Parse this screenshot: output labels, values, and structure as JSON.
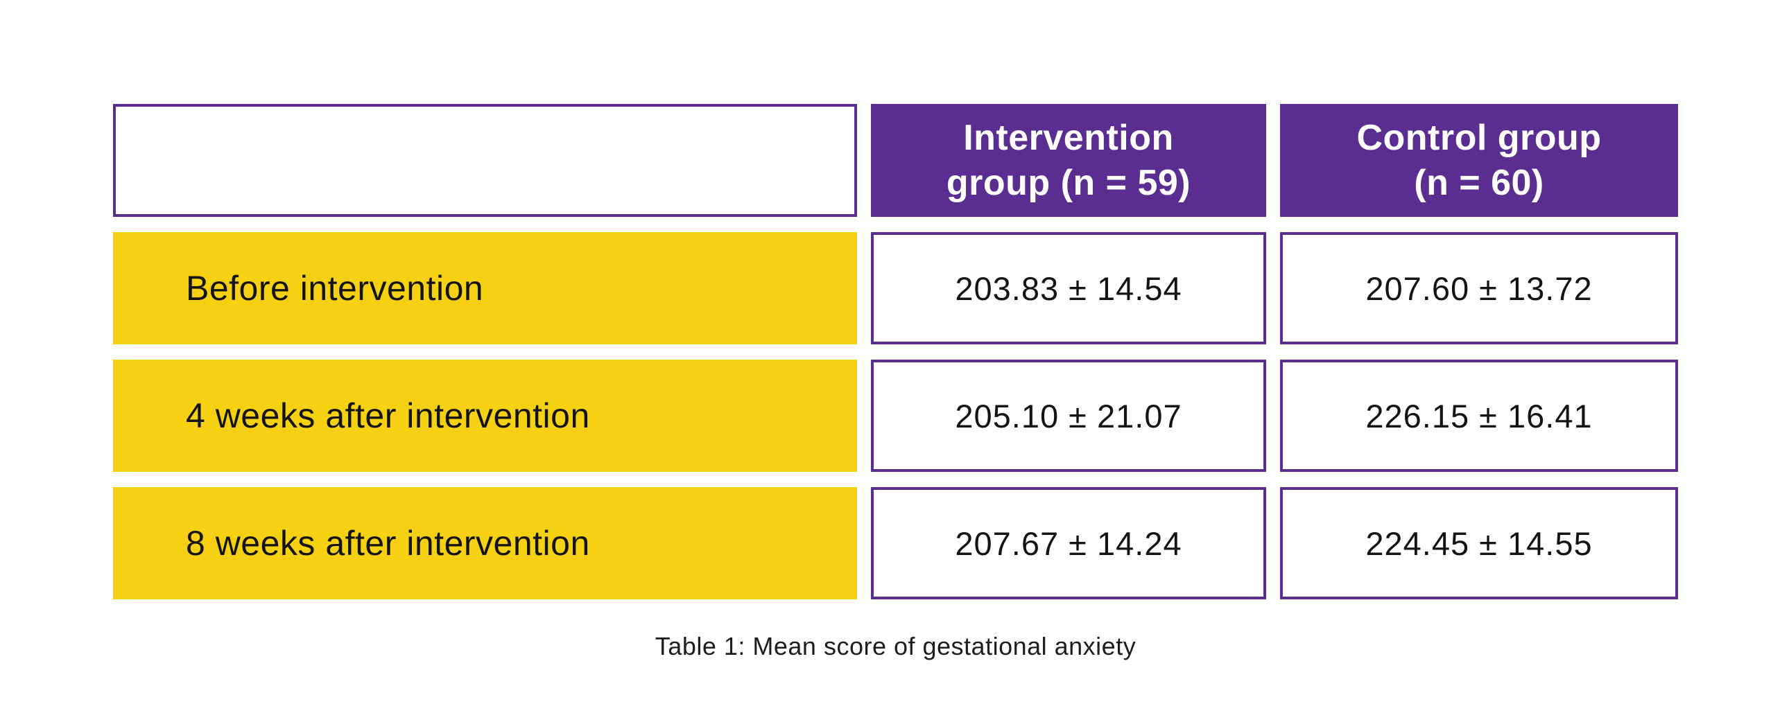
{
  "chart_data": {
    "type": "table",
    "title": "Table 1: Mean score of gestational anxiety",
    "columns": [
      "",
      "Intervention group (n = 59)",
      "Control group (n = 60)"
    ],
    "rows": [
      [
        "Before intervention",
        "203.83 ± 14.54",
        "207.60 ± 13.72"
      ],
      [
        "4 weeks after intervention",
        "205.10 ± 21.07",
        "226.15 ± 16.41"
      ],
      [
        "8 weeks after intervention",
        "207.67 ± 14.24",
        "224.45 ± 14.55"
      ]
    ],
    "numeric": {
      "timepoints": [
        "Before intervention",
        "4 weeks after intervention",
        "8 weeks after intervention"
      ],
      "intervention_mean": [
        203.83,
        205.1,
        207.67
      ],
      "intervention_sd": [
        14.54,
        21.07,
        14.24
      ],
      "control_mean": [
        207.6,
        226.15,
        224.45
      ],
      "control_sd": [
        13.72,
        16.41,
        14.55
      ],
      "intervention_n": 59,
      "control_n": 60
    }
  },
  "table": {
    "header": {
      "intervention": {
        "line1": "Intervention",
        "line2": "group (n = 59)"
      },
      "control": {
        "line1": "Control group",
        "line2": "(n = 60)"
      }
    },
    "rows": [
      {
        "label": "Before intervention",
        "intervention": "203.83 ± 14.54",
        "control": "207.60 ± 13.72"
      },
      {
        "label": "4 weeks after intervention",
        "intervention": "205.10 ± 21.07",
        "control": "226.15 ± 16.41"
      },
      {
        "label": "8 weeks after intervention",
        "intervention": "207.67 ± 14.24",
        "control": "224.45 ± 14.55"
      }
    ],
    "caption": "Table 1: Mean score of gestational anxiety"
  },
  "colors": {
    "accent_purple": "#5A2D91",
    "accent_yellow": "#F6D012",
    "header_text": "#FFFFFF",
    "body_text": "#141414",
    "background": "#FFFFFF"
  }
}
